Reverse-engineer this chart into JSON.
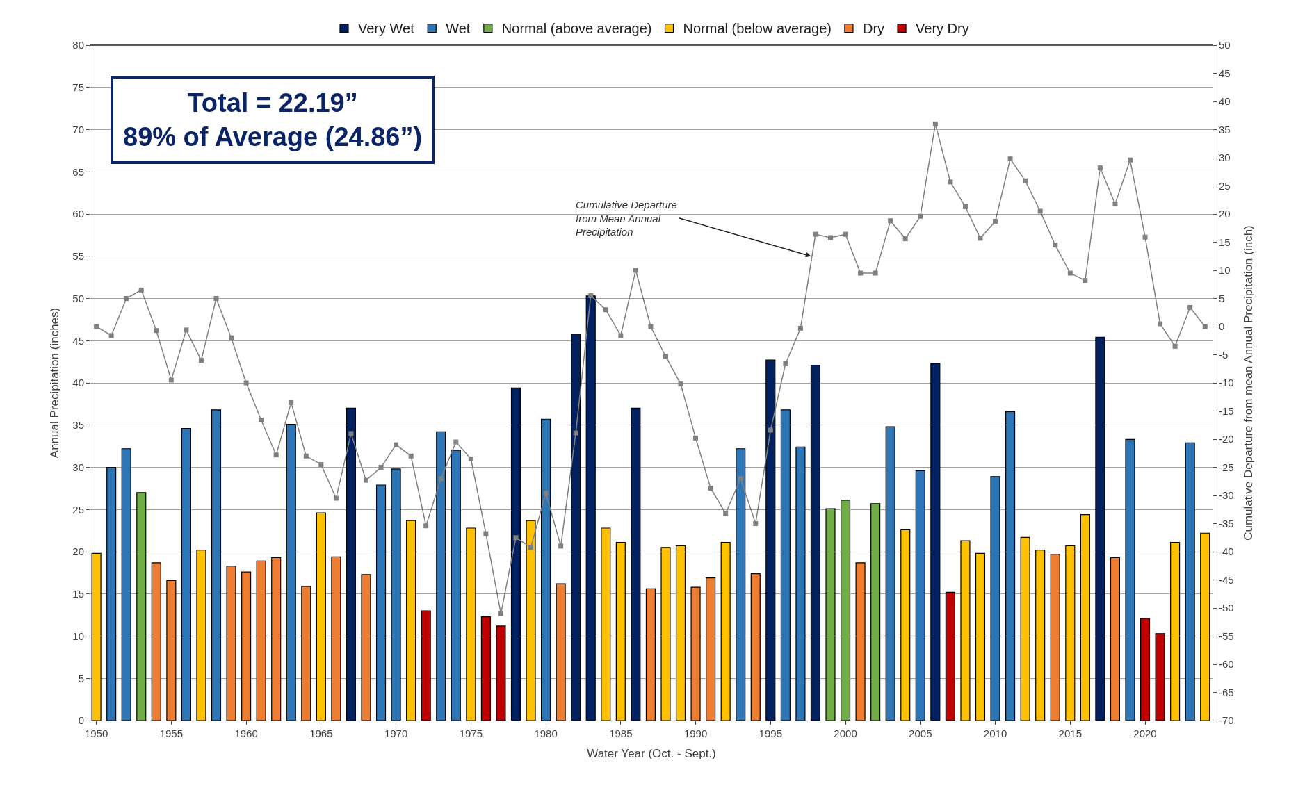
{
  "chart_data": {
    "type": "bar",
    "xlabel": "Water Year (Oct. - Sept.)",
    "ylabel": "Annual Precipitation (inches)",
    "y2label": "Cumulative Departure from mean Annual Precipitation (inch)",
    "xlim": [
      1949.6,
      2024.5
    ],
    "xticks": [
      1950,
      1955,
      1960,
      1965,
      1970,
      1975,
      1980,
      1985,
      1990,
      1995,
      2000,
      2005,
      2010,
      2015,
      2020
    ],
    "ylim": [
      0,
      80
    ],
    "yticks": [
      0,
      5,
      10,
      15,
      20,
      25,
      30,
      35,
      40,
      45,
      50,
      55,
      60,
      65,
      70,
      75,
      80
    ],
    "y2lim": [
      -70,
      50
    ],
    "y2ticks": [
      -70,
      -65,
      -60,
      -55,
      -50,
      -45,
      -40,
      -35,
      -30,
      -25,
      -20,
      -15,
      -10,
      -5,
      0,
      5,
      10,
      15,
      20,
      25,
      30,
      35,
      40,
      45,
      50
    ],
    "grid": "y",
    "legend": "top",
    "annotations": [
      "Total = 22.19”\n89% of Average (24.86”)",
      {
        "text": "Cumulative Departure\nfrom Mean Annual\nPrecipitation",
        "x": 1997.7,
        "y": 55
      }
    ],
    "series": [
      {
        "name": "Very Wet",
        "color": "#002060",
        "x": [
          1967,
          1978,
          1982,
          1983,
          1986,
          1995,
          1998,
          2006,
          2017
        ],
        "values": [
          37.0,
          39.4,
          45.8,
          50.3,
          37.0,
          42.7,
          42.1,
          42.3,
          45.4
        ]
      },
      {
        "name": "Wet",
        "color": "#2e75b6",
        "x": [
          1951,
          1952,
          1956,
          1958,
          1963,
          1969,
          1970,
          1973,
          1974,
          1980,
          1993,
          1996,
          1997,
          2003,
          2005,
          2010,
          2011,
          2019,
          2023
        ],
        "values": [
          30.0,
          32.2,
          34.6,
          36.8,
          35.1,
          27.9,
          29.8,
          34.2,
          32.0,
          35.7,
          32.2,
          36.8,
          32.4,
          34.8,
          29.6,
          28.9,
          36.6,
          33.3,
          32.9
        ]
      },
      {
        "name": "Normal (above average)",
        "color": "#70ad47",
        "x": [
          1953,
          1999,
          2000,
          2002
        ],
        "values": [
          27.0,
          25.1,
          26.1,
          25.7
        ]
      },
      {
        "name": "Normal (below average)",
        "color": "#ffc000",
        "x": [
          1950,
          1957,
          1965,
          1971,
          1975,
          1979,
          1984,
          1985,
          1988,
          1989,
          1992,
          2004,
          2008,
          2009,
          2012,
          2013,
          2015,
          2016,
          2022,
          2024
        ],
        "values": [
          19.8,
          20.2,
          24.6,
          23.7,
          22.8,
          23.7,
          22.8,
          21.1,
          20.5,
          20.7,
          21.1,
          22.6,
          21.3,
          19.8,
          21.7,
          20.2,
          20.7,
          24.4,
          21.1,
          22.2
        ]
      },
      {
        "name": "Dry",
        "color": "#ed7d31",
        "x": [
          1954,
          1955,
          1959,
          1960,
          1961,
          1962,
          1964,
          1966,
          1968,
          1981,
          1987,
          1990,
          1991,
          1994,
          2001,
          2014,
          2018
        ],
        "values": [
          18.7,
          16.6,
          18.3,
          17.6,
          18.9,
          19.3,
          15.9,
          19.4,
          17.3,
          16.2,
          15.6,
          15.8,
          16.9,
          17.4,
          18.7,
          19.7,
          19.3
        ]
      },
      {
        "name": "Very Dry",
        "color": "#c00000",
        "x": [
          1972,
          1976,
          1977,
          2007,
          2020,
          2021
        ],
        "values": [
          13.0,
          12.3,
          11.2,
          15.2,
          12.1,
          10.3
        ]
      },
      {
        "type": "line",
        "axis": "y2",
        "color": "#808080",
        "marker": "square",
        "x": [
          1950,
          1951,
          1952,
          1953,
          1954,
          1955,
          1956,
          1957,
          1958,
          1959,
          1960,
          1961,
          1962,
          1963,
          1964,
          1965,
          1966,
          1967,
          1968,
          1969,
          1970,
          1971,
          1972,
          1973,
          1974,
          1975,
          1976,
          1977,
          1978,
          1979,
          1980,
          1981,
          1982,
          1983,
          1984,
          1985,
          1986,
          1987,
          1988,
          1989,
          1990,
          1991,
          1992,
          1993,
          1994,
          1995,
          1996,
          1997,
          1998,
          1999,
          2000,
          2001,
          2002,
          2003,
          2004,
          2005,
          2006,
          2007,
          2008,
          2009,
          2010,
          2011,
          2012,
          2013,
          2014,
          2015,
          2016,
          2017,
          2018,
          2019,
          2020,
          2021,
          2022,
          2023,
          2024
        ],
        "values": [
          0,
          -1.6,
          5,
          6.5,
          -0.7,
          -9.5,
          -0.6,
          -6,
          5,
          -2,
          -10,
          -16.6,
          -22.8,
          -13.5,
          -23,
          -24.5,
          -30.5,
          -19,
          -27.3,
          -25,
          -21,
          -23,
          -35.4,
          -27,
          -20.5,
          -23.5,
          -36.8,
          -51,
          -37.5,
          -39.2,
          -29.6,
          -39,
          -18.9,
          5.5,
          3,
          -1.6,
          10,
          0,
          -5.3,
          -10.2,
          -19.8,
          -28.7,
          -33.2,
          -27,
          -35,
          -18.4,
          -6.6,
          -0.3,
          16.4,
          15.8,
          16.4,
          9.5,
          9.5,
          18.8,
          15.6,
          19.6,
          36,
          25.7,
          21.3,
          15.7,
          18.7,
          29.8,
          25.9,
          20.5,
          14.5,
          9.5,
          8.2,
          28.2,
          21.8,
          29.6,
          15.9,
          0.5,
          -3.5,
          3.4,
          0
        ]
      }
    ]
  }
}
